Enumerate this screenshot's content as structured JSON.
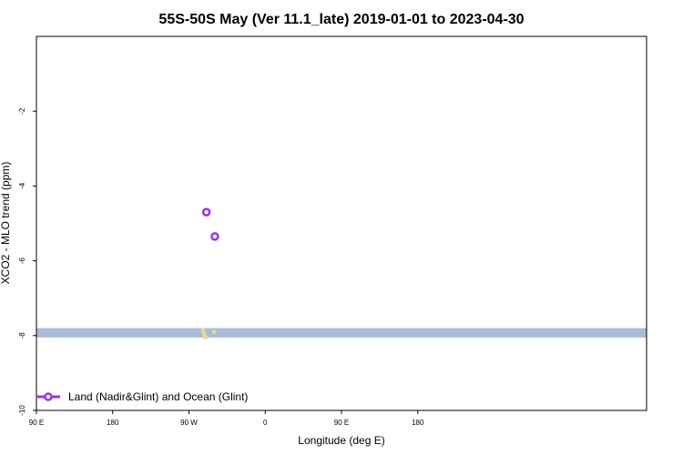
{
  "chart_data": {
    "type": "scatter",
    "title": "55S-50S May (Ver 11.1_late)   2019-01-01 to 2023-04-30",
    "xlabel": "Longitude (deg E)",
    "ylabel": "XCO2 - MLO trend (ppm)",
    "xlim": [
      90,
      450
    ],
    "ylim": [
      -10,
      0
    ],
    "x_ticks": [
      {
        "value": 90,
        "label": "90 E"
      },
      {
        "value": 180,
        "label": "180"
      },
      {
        "value": 270,
        "label": "90 W"
      },
      {
        "value": 360,
        "label": "0"
      },
      {
        "value": 450,
        "label": "90 E"
      },
      {
        "value": 540,
        "label": "180"
      }
    ],
    "y_ticks": [
      {
        "value": -2,
        "label": "-2"
      },
      {
        "value": -4,
        "label": "-4"
      },
      {
        "value": -6,
        "label": "-6"
      },
      {
        "value": -8,
        "label": "-8"
      },
      {
        "value": -10,
        "label": "-10"
      }
    ],
    "series": [
      {
        "name": "Land (Nadir&Glint) and Ocean (Glint)",
        "color": "#9b30ff",
        "marker": "open-circle",
        "points": [
          {
            "x": 290.5,
            "y": -4.7
          },
          {
            "x": 300.5,
            "y": -5.35
          }
        ]
      }
    ],
    "background_band": {
      "color": "#a8bcd9",
      "y_range": [
        -8.05,
        -7.8
      ]
    },
    "land_features": {
      "color": "#f5d58a",
      "points": [
        {
          "x": 286.5,
          "y": -7.85
        },
        {
          "x": 287.5,
          "y": -7.95
        },
        {
          "x": 288.5,
          "y": -8.0
        },
        {
          "x": 289.5,
          "y": -8.05
        },
        {
          "x": 299.5,
          "y": -7.9
        }
      ]
    },
    "legend": {
      "placement": "bottom-left"
    },
    "grid": false
  }
}
